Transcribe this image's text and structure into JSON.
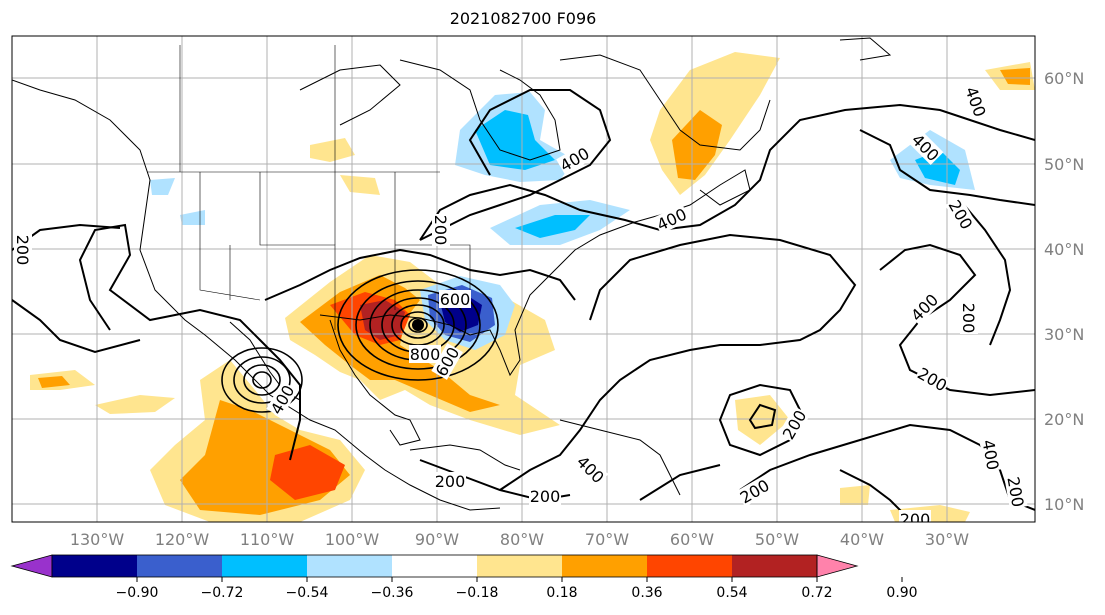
{
  "title": "2021082700 F096",
  "map": {
    "lon_labels": [
      "130°W",
      "120°W",
      "110°W",
      "100°W",
      "90°W",
      "80°W",
      "70°W",
      "60°W",
      "50°W",
      "40°W",
      "30°W"
    ],
    "lat_labels": [
      "60°N",
      "50°N",
      "40°N",
      "30°N",
      "20°N",
      "10°N"
    ],
    "contour_labels": [
      "200",
      "200",
      "400",
      "400",
      "600",
      "800",
      "600",
      "400",
      "200",
      "400",
      "400",
      "200",
      "200",
      "200",
      "400",
      "200",
      "200",
      "200",
      "400",
      "400",
      "200",
      "200"
    ],
    "contour_color": "#000000"
  },
  "colorbar": {
    "ticks": [
      "−0.90",
      "−0.72",
      "−0.54",
      "−0.36",
      "−0.18",
      "0.18",
      "0.36",
      "0.54",
      "0.72",
      "0.90"
    ],
    "colors": [
      "#9932cc",
      "#00008b",
      "#3a5fcd",
      "#00bfff",
      "#b0e2ff",
      "#ffffff",
      "#ffe58f",
      "#ffa000",
      "#ff4500",
      "#b22222",
      "#ff82ab"
    ]
  }
}
